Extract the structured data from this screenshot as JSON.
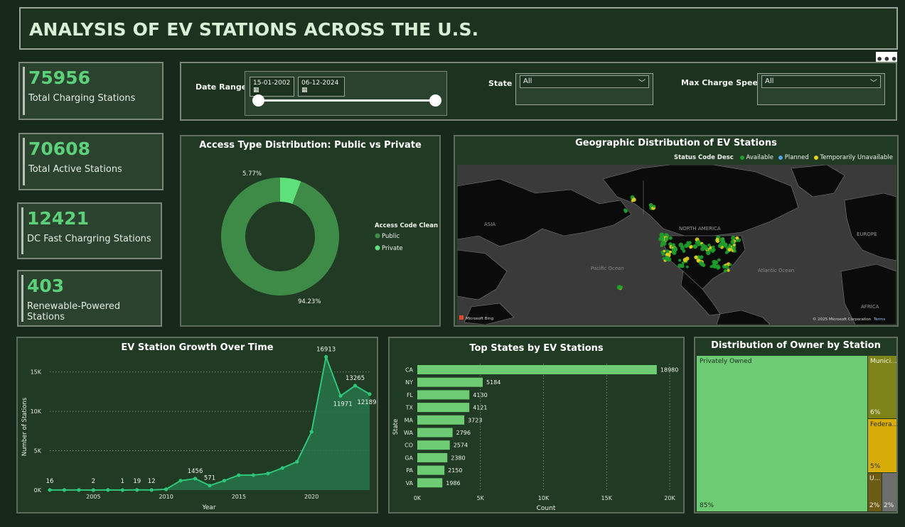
{
  "title": "ANALYSIS OF EV STATIONS ACROSS THE U.S.",
  "more_label": "•••",
  "kpis": [
    {
      "value": "75956",
      "label": "Total Charging Stations"
    },
    {
      "value": "70608",
      "label": "Total Active Stations"
    },
    {
      "value": "12421",
      "label": "DC Fast Chargring Stations"
    },
    {
      "value": "403",
      "label": "Renewable-Powered Stations"
    }
  ],
  "filters": {
    "date_range_label": "Date Range",
    "date_start": "15-01-2002",
    "date_end": "06-12-2024",
    "state_label": "State",
    "state_value": "All",
    "speed_label": "Max Charge Speed",
    "speed_value": "All"
  },
  "donut": {
    "title": "Access Type Distribution: Public vs Private",
    "legend_title": "Access Code Clean",
    "public_label": "Public",
    "private_label": "Private",
    "public_pct_label": "94.23%",
    "private_pct_label": "5.77%",
    "public_color": "#3e8b48",
    "private_color": "#5ee07a"
  },
  "map": {
    "title": "Geographic Distribution of EV Stations",
    "legend_title": "Status Code Desc",
    "legend": [
      {
        "label": "Available",
        "color": "#1f9e2c"
      },
      {
        "label": "Planned",
        "color": "#4fa3e0"
      },
      {
        "label": "Temporarily Unavailable",
        "color": "#e6d21e"
      }
    ],
    "labels": {
      "asia": "ASIA",
      "north_america": "NORTH AMERICA",
      "europe": "EUROPE",
      "pacific": "Pacific Ocean",
      "atlantic": "Atlantic Ocean",
      "africa": "AFRICA"
    },
    "bing": "Microsoft Bing",
    "copyright": "© 2025 Microsoft Corporation",
    "terms": "Terms"
  },
  "growth": {
    "title": "EV Station Growth Over Time",
    "xlabel": "Year",
    "ylabel": "Number of Stations"
  },
  "states": {
    "title": "Top States by EV Stations",
    "xlabel": "Count",
    "ylabel": "State"
  },
  "owner": {
    "title": "Distribution of Owner by Station",
    "tiles": [
      {
        "label": "Privately Owned",
        "pct": "85%"
      },
      {
        "label": "Munici...",
        "pct": "6%"
      },
      {
        "label": "Federa...",
        "pct": "5%"
      },
      {
        "label": "U...",
        "pct": "2%"
      },
      {
        "label": "",
        "pct": "2%"
      }
    ]
  },
  "chart_data": [
    {
      "type": "pie",
      "title": "Access Type Distribution: Public vs Private",
      "categories": [
        "Public",
        "Private"
      ],
      "values": [
        94.23,
        5.77
      ]
    },
    {
      "type": "area",
      "title": "EV Station Growth Over Time",
      "xlabel": "Year",
      "ylabel": "Number of Stations",
      "x": [
        2002,
        2003,
        2004,
        2005,
        2006,
        2007,
        2008,
        2009,
        2010,
        2011,
        2012,
        2013,
        2014,
        2015,
        2016,
        2017,
        2018,
        2019,
        2020,
        2021,
        2022,
        2023,
        2024
      ],
      "values": [
        16,
        10,
        10,
        2,
        10,
        1,
        19,
        12,
        100,
        1200,
        1456,
        571,
        1200,
        1900,
        1900,
        2100,
        2800,
        3600,
        7400,
        16913,
        11971,
        13265,
        12189
      ],
      "labels": {
        "2002": "16",
        "2005": "2",
        "2007": "1",
        "2008": "19",
        "2009": "12",
        "2012": "1456",
        "2013": "571",
        "2021": "16913",
        "2022": "11971",
        "2023": "13265",
        "2024": "12189"
      },
      "yticks": [
        "0K",
        "5K",
        "10K",
        "15K"
      ],
      "xticks": [
        "2005",
        "2010",
        "2015",
        "2020"
      ],
      "ylim": [
        0,
        17500
      ]
    },
    {
      "type": "bar",
      "title": "Top States by EV Stations",
      "xlabel": "Count",
      "ylabel": "State",
      "categories": [
        "CA",
        "NY",
        "FL",
        "TX",
        "MA",
        "WA",
        "CO",
        "GA",
        "PA",
        "VA"
      ],
      "values": [
        18980,
        5184,
        4130,
        4121,
        3723,
        2796,
        2574,
        2380,
        2150,
        1986
      ],
      "xticks": [
        "0K",
        "5K",
        "10K",
        "15K",
        "20K"
      ],
      "xlim": [
        0,
        20000
      ]
    }
  ]
}
